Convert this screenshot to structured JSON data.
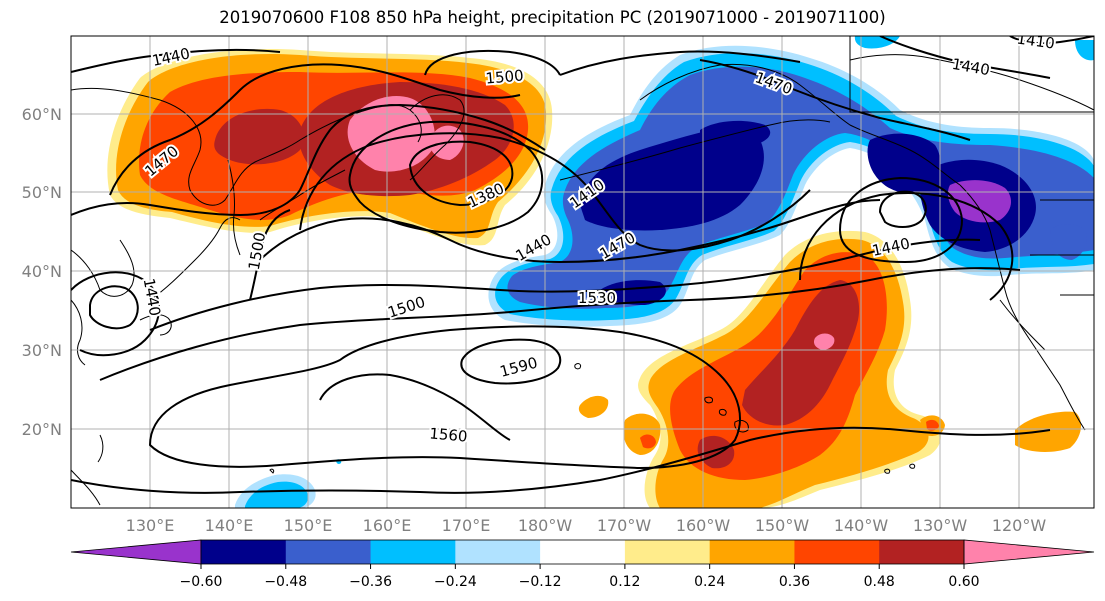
{
  "title": "2019070600 F108 850 hPa height, precipitation PC (2019071000 - 2019071100)",
  "map": {
    "latitude_labels": [
      "60°N",
      "50°N",
      "40°N",
      "30°N",
      "20°N"
    ],
    "longitude_labels": [
      "130°E",
      "140°E",
      "150°E",
      "160°E",
      "170°E",
      "180°W",
      "170°W",
      "160°W",
      "150°W",
      "140°W",
      "130°W",
      "120°W"
    ],
    "height_contour_labels": [
      "1440",
      "1500",
      "1470",
      "1440",
      "1470",
      "1380",
      "1410",
      "1440",
      "1470",
      "1500",
      "1530",
      "1500",
      "1440",
      "1590",
      "1560",
      "1440",
      "1410",
      "1440"
    ],
    "contour_levels": [
      1380,
      1410,
      1440,
      1470,
      1500,
      1530,
      1560,
      1590
    ],
    "grid": true
  },
  "colorbar": {
    "tick_labels": [
      "−0.60",
      "−0.48",
      "−0.36",
      "−0.24",
      "−0.12",
      "0.12",
      "0.24",
      "0.36",
      "0.48",
      "0.60"
    ],
    "colors": [
      "#9933cc",
      "#00008b",
      "#3a5fcd",
      "#00bfff",
      "#b0e2ff",
      "#ffffff",
      "#ffec8b",
      "#ffa500",
      "#ff4500",
      "#b22222",
      "#ff82ab"
    ]
  }
}
